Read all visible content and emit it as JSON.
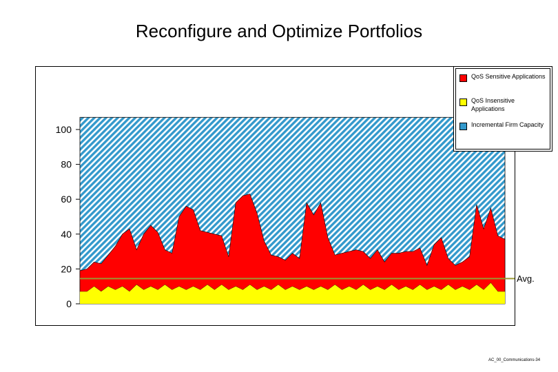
{
  "title": "Reconfigure and Optimize Portfolios",
  "legend": {
    "items": [
      {
        "label": "QoS Sensitive Applications",
        "color": "#ff0000"
      },
      {
        "label": "QoS Insensitive Applications",
        "color": "#ffff00"
      },
      {
        "label": "Incremental Firm Capacity",
        "color": "#3399cc"
      }
    ]
  },
  "avg_label": "Avg.",
  "footer": "AC_00_Communications-34",
  "chart_data": {
    "type": "area",
    "title": "Reconfigure and Optimize Portfolios",
    "ylim": [
      0,
      100
    ],
    "yticks": [
      0,
      20,
      40,
      60,
      80,
      100
    ],
    "grid": false,
    "legend_position": "top-right",
    "capacity": 107,
    "average": 14.5,
    "colors": {
      "sensitive": "#ff0000",
      "insensitive": "#ffff00",
      "capacity": "#3399cc",
      "average_line": "#999933"
    },
    "series": [
      {
        "name": "QoS Insensitive Applications",
        "values": [
          7,
          7,
          10,
          7,
          10,
          8,
          10,
          7,
          11,
          8,
          10,
          8,
          11,
          8,
          10,
          8,
          10,
          8,
          11,
          8,
          11,
          8,
          10,
          8,
          11,
          8,
          10,
          8,
          11,
          8,
          10,
          8,
          10,
          8,
          10,
          8,
          11,
          8,
          10,
          8,
          11,
          8,
          10,
          8,
          11,
          8,
          10,
          8,
          11,
          8,
          10,
          8,
          11,
          8,
          10,
          8,
          11,
          8,
          12,
          7,
          7
        ]
      },
      {
        "name": "QoS Sensitive Applications",
        "values": [
          12,
          13,
          14,
          16,
          18,
          25,
          30,
          36,
          20,
          32,
          35,
          33,
          20,
          21,
          40,
          48,
          44,
          34,
          30,
          32,
          28,
          19,
          48,
          54,
          52,
          44,
          26,
          20,
          16,
          17,
          19,
          18,
          48,
          43,
          48,
          30,
          17,
          21,
          20,
          23,
          19,
          18,
          21,
          16,
          18,
          21,
          20,
          22,
          21,
          14,
          24,
          30,
          15,
          14,
          14,
          19,
          46,
          35,
          43,
          32,
          30
        ]
      }
    ]
  }
}
